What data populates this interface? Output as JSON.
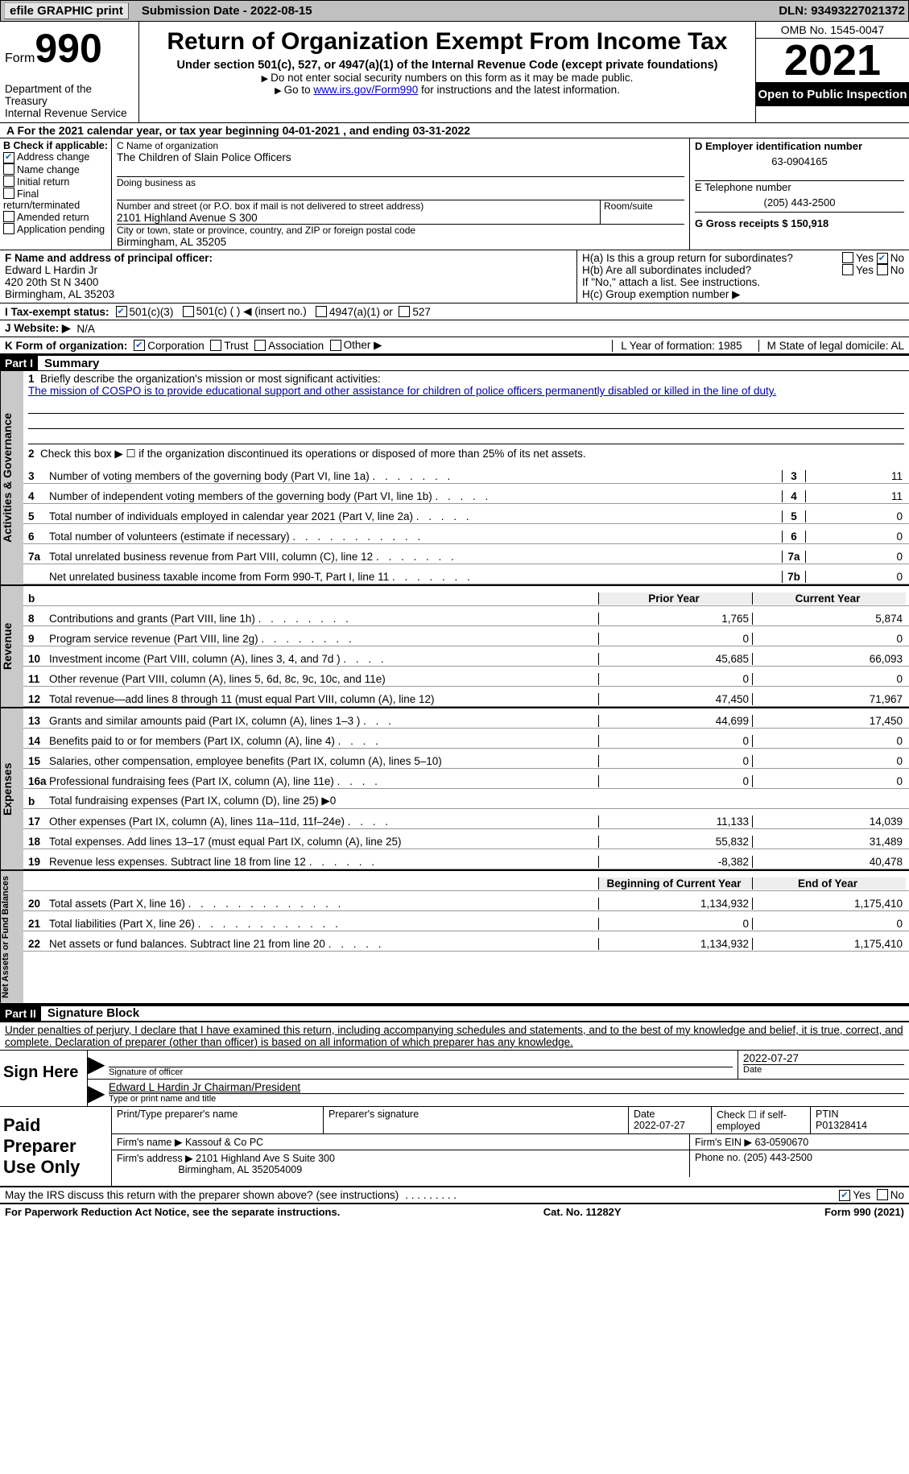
{
  "topbar": {
    "efile_label": "efile GRAPHIC print",
    "submission_label": "Submission Date - 2022-08-15",
    "dln_label": "DLN: 93493227021372"
  },
  "header": {
    "form_prefix": "Form",
    "form_number": "990",
    "dept_line1": "Department of the Treasury",
    "dept_line2": "Internal Revenue Service",
    "title": "Return of Organization Exempt From Income Tax",
    "subtitle": "Under section 501(c), 527, or 4947(a)(1) of the Internal Revenue Code (except private foundations)",
    "note1": "Do not enter social security numbers on this form as it may be made public.",
    "note2_prefix": "Go to ",
    "note2_link": "www.irs.gov/Form990",
    "note2_suffix": " for instructions and the latest information.",
    "omb": "OMB No. 1545-0047",
    "year": "2021",
    "open_inspection": "Open to Public Inspection"
  },
  "row_a": "A For the 2021 calendar year, or tax year beginning 04-01-2021   , and ending 03-31-2022",
  "section_b": {
    "title": "B Check if applicable:",
    "items": [
      {
        "label": "Address change",
        "checked": true
      },
      {
        "label": "Name change",
        "checked": false
      },
      {
        "label": "Initial return",
        "checked": false
      },
      {
        "label": "Final return/terminated",
        "checked": false
      },
      {
        "label": "Amended return",
        "checked": false
      },
      {
        "label": "Application pending",
        "checked": false
      }
    ]
  },
  "section_c": {
    "name_label": "C Name of organization",
    "name": "The Children of Slain Police Officers",
    "dba_label": "Doing business as",
    "addr_label": "Number and street (or P.O. box if mail is not delivered to street address)",
    "addr": "2101 Highland Avenue S 300",
    "room_label": "Room/suite",
    "city_label": "City or town, state or province, country, and ZIP or foreign postal code",
    "city": "Birmingham, AL  35205"
  },
  "section_d": {
    "ein_label": "D Employer identification number",
    "ein": "63-0904165",
    "phone_label": "E Telephone number",
    "phone": "(205) 443-2500",
    "gross_label": "G Gross receipts $ 150,918"
  },
  "section_f": {
    "label": "F  Name and address of principal officer:",
    "name": "Edward L Hardin Jr",
    "addr1": "420 20th St N 3400",
    "addr2": "Birmingham, AL  35203"
  },
  "section_h": {
    "ha": "H(a)  Is this a group return for subordinates?",
    "hb": "H(b)  Are all subordinates included?",
    "hb_note": "If \"No,\" attach a list. See instructions.",
    "hc": "H(c)  Group exemption number ▶",
    "yes": "Yes",
    "no": "No"
  },
  "line_i": {
    "label": "I  Tax-exempt status:",
    "opt1": "501(c)(3)",
    "opt2": "501(c) (  ) ◀ (insert no.)",
    "opt3": "4947(a)(1) or",
    "opt4": "527"
  },
  "line_j": {
    "label": "J  Website: ▶",
    "value": "N/A"
  },
  "line_k": {
    "label": "K Form of organization:",
    "opt1": "Corporation",
    "opt2": "Trust",
    "opt3": "Association",
    "opt4": "Other ▶"
  },
  "line_l": {
    "label": "L Year of formation: 1985"
  },
  "line_m": {
    "label": "M State of legal domicile: AL"
  },
  "part1": {
    "bar": "Part I",
    "title": "Summary",
    "mission_prompt": "Briefly describe the organization's mission or most significant activities:",
    "mission": "The mission of COSPO is to provide educational support and other assistance for children of police officers permanently disabled or killed in the line of duty.",
    "line2_text": "Check this box ▶ ☐ if the organization discontinued its operations or disposed of more than 25% of its net assets.",
    "activities": [
      {
        "num": "3",
        "desc": "Number of voting members of the governing body (Part VI, line 1a)",
        "dots": ".  .  .  .  .  .  .",
        "cell": "3",
        "val": "11"
      },
      {
        "num": "4",
        "desc": "Number of independent voting members of the governing body (Part VI, line 1b)",
        "dots": ".  .  .  .  .",
        "cell": "4",
        "val": "11"
      },
      {
        "num": "5",
        "desc": "Total number of individuals employed in calendar year 2021 (Part V, line 2a)",
        "dots": ".  .  .  .  .",
        "cell": "5",
        "val": "0"
      },
      {
        "num": "6",
        "desc": "Total number of volunteers (estimate if necessary)",
        "dots": ".  .  .  .  .  .  .  .  .  .  .",
        "cell": "6",
        "val": "0"
      },
      {
        "num": "7a",
        "desc": "Total unrelated business revenue from Part VIII, column (C), line 12",
        "dots": ".  .  .  .  .  .  .",
        "cell": "7a",
        "val": "0"
      },
      {
        "num": " ",
        "desc": "Net unrelated business taxable income from Form 990-T, Part I, line 11",
        "dots": ".  .  .  .  .  .  .",
        "cell": "7b",
        "val": "0"
      }
    ],
    "col_prior": "Prior Year",
    "col_current": "Current Year",
    "revenue": [
      {
        "num": "8",
        "desc": "Contributions and grants (Part VIII, line 1h)",
        "dots": ".  .  .  .  .  .  .  .",
        "prior": "1,765",
        "curr": "5,874"
      },
      {
        "num": "9",
        "desc": "Program service revenue (Part VIII, line 2g)",
        "dots": ".  .  .  .  .  .  .  .",
        "prior": "0",
        "curr": "0"
      },
      {
        "num": "10",
        "desc": "Investment income (Part VIII, column (A), lines 3, 4, and 7d )",
        "dots": ".  .  .  .",
        "prior": "45,685",
        "curr": "66,093"
      },
      {
        "num": "11",
        "desc": "Other revenue (Part VIII, column (A), lines 5, 6d, 8c, 9c, 10c, and 11e)",
        "dots": "",
        "prior": "0",
        "curr": "0"
      },
      {
        "num": "12",
        "desc": "Total revenue—add lines 8 through 11 (must equal Part VIII, column (A), line 12)",
        "dots": "",
        "prior": "47,450",
        "curr": "71,967"
      }
    ],
    "expenses": [
      {
        "num": "13",
        "desc": "Grants and similar amounts paid (Part IX, column (A), lines 1–3 )",
        "dots": ".  .  .",
        "prior": "44,699",
        "curr": "17,450"
      },
      {
        "num": "14",
        "desc": "Benefits paid to or for members (Part IX, column (A), line 4)",
        "dots": ".  .  .  .",
        "prior": "0",
        "curr": "0"
      },
      {
        "num": "15",
        "desc": "Salaries, other compensation, employee benefits (Part IX, column (A), lines 5–10)",
        "dots": "",
        "prior": "0",
        "curr": "0"
      },
      {
        "num": "16a",
        "desc": "Professional fundraising fees (Part IX, column (A), line 11e)",
        "dots": ".  .  .  .",
        "prior": "0",
        "curr": "0"
      },
      {
        "num": "b",
        "desc": "Total fundraising expenses (Part IX, column (D), line 25) ▶0",
        "dots": "",
        "prior": "",
        "curr": "",
        "gray": true
      },
      {
        "num": "17",
        "desc": "Other expenses (Part IX, column (A), lines 11a–11d, 11f–24e)",
        "dots": ".  .  .  .",
        "prior": "11,133",
        "curr": "14,039"
      },
      {
        "num": "18",
        "desc": "Total expenses. Add lines 13–17 (must equal Part IX, column (A), line 25)",
        "dots": "",
        "prior": "55,832",
        "curr": "31,489"
      },
      {
        "num": "19",
        "desc": "Revenue less expenses. Subtract line 18 from line 12",
        "dots": ".  .  .  .  .  .",
        "prior": "-8,382",
        "curr": "40,478"
      }
    ],
    "col_begin": "Beginning of Current Year",
    "col_end": "End of Year",
    "netassets": [
      {
        "num": "20",
        "desc": "Total assets (Part X, line 16)",
        "dots": ".  .  .  .  .  .  .  .  .  .  .  .  .",
        "prior": "1,134,932",
        "curr": "1,175,410"
      },
      {
        "num": "21",
        "desc": "Total liabilities (Part X, line 26)",
        "dots": ".  .  .  .  .  .  .  .  .  .  .  .",
        "prior": "0",
        "curr": "0"
      },
      {
        "num": "22",
        "desc": "Net assets or fund balances. Subtract line 21 from line 20",
        "dots": ".  .  .  .  .",
        "prior": "1,134,932",
        "curr": "1,175,410"
      }
    ]
  },
  "vtabs": {
    "gov": "Activities & Governance",
    "rev": "Revenue",
    "exp": "Expenses",
    "net": "Net Assets or Fund Balances"
  },
  "part2": {
    "bar": "Part II",
    "title": "Signature Block",
    "declaration": "Under penalties of perjury, I declare that I have examined this return, including accompanying schedules and statements, and to the best of my knowledge and belief, it is true, correct, and complete. Declaration of preparer (other than officer) is based on all information of which preparer has any knowledge."
  },
  "sign": {
    "here": "Sign Here",
    "sig_label": "Signature of officer",
    "date": "2022-07-27",
    "date_label": "Date",
    "name": "Edward L Hardin Jr  Chairman/President",
    "name_label": "Type or print name and title"
  },
  "preparer": {
    "title": "Paid Preparer Use Only",
    "print_label": "Print/Type preparer's name",
    "sig_label": "Preparer's signature",
    "date_label": "Date",
    "date": "2022-07-27",
    "check_label": "Check ☐ if self-employed",
    "ptin_label": "PTIN",
    "ptin": "P01328414",
    "firm_name_label": "Firm's name    ▶",
    "firm_name": "Kassouf & Co PC",
    "firm_ein_label": "Firm's EIN ▶",
    "firm_ein": "63-0590670",
    "firm_addr_label": "Firm's address ▶",
    "firm_addr1": "2101 Highland Ave S Suite 300",
    "firm_addr2": "Birmingham, AL  352054009",
    "phone_label": "Phone no.",
    "phone": "(205) 443-2500"
  },
  "may_discuss": "May the IRS discuss this return with the preparer shown above? (see instructions)",
  "may_yes": "Yes",
  "may_no": "No",
  "footer": {
    "left": "For Paperwork Reduction Act Notice, see the separate instructions.",
    "mid": "Cat. No. 11282Y",
    "right": "Form 990 (2021)"
  }
}
